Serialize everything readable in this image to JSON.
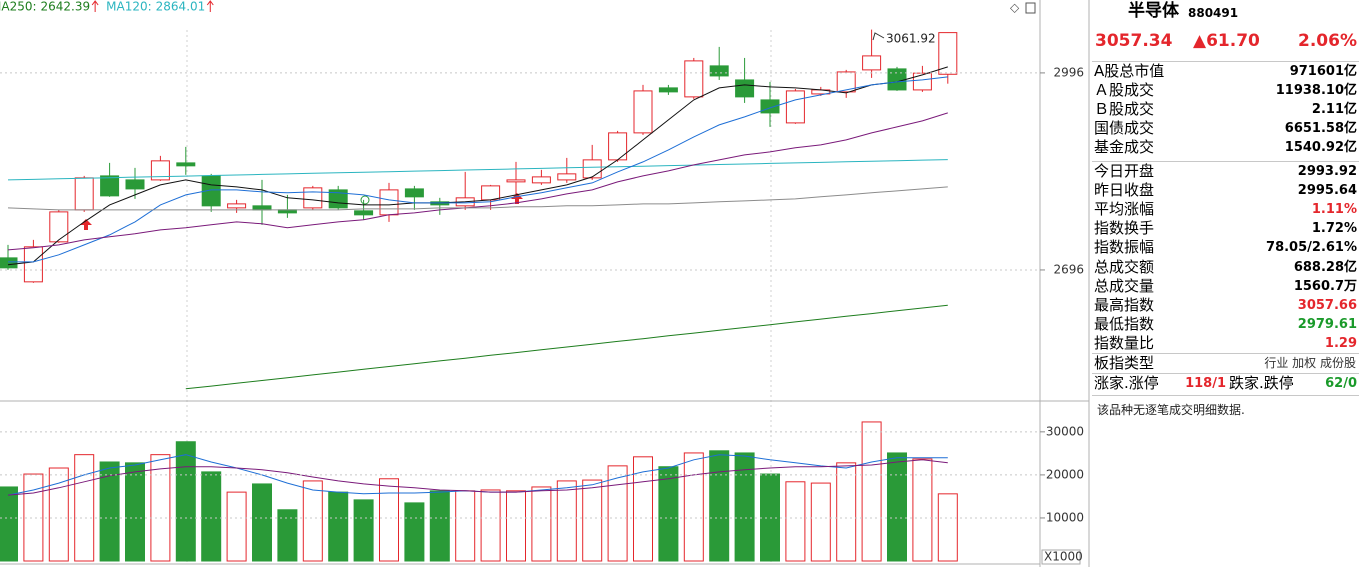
{
  "chart_data": [
    {
      "type": "candlestick",
      "open": [
        2714.4,
        2677.9,
        2738.8,
        2787.5,
        2839.2,
        2833.1,
        2833.1,
        2859.0,
        2839.2,
        2790.5,
        2793.6,
        2787.5,
        2790.5,
        2817.9,
        2786.0,
        2779.9,
        2819.4,
        2799.7,
        2793.6,
        2802.7,
        2830.1,
        2828.6,
        2833.1,
        2836.2,
        2863.6,
        2904.7,
        2973.2,
        2959.5,
        3006.7,
        2985.3,
        2954.9,
        2919.9,
        2964.0,
        2967.1,
        3000.6,
        3002.1,
        2970.1,
        2993.92
      ],
      "high": [
        2734.2,
        2741.8,
        2787.5,
        2839.2,
        2859.0,
        2851.4,
        2869.7,
        2883.4,
        2842.3,
        2802.7,
        2833.1,
        2810.3,
        2824.0,
        2824.0,
        2802.7,
        2828.6,
        2824.0,
        2805.8,
        2845.3,
        2825.5,
        2860.5,
        2848.4,
        2866.6,
        2886.4,
        2907.7,
        2977.7,
        2977.7,
        3018.8,
        3035.6,
        3018.8,
        2982.3,
        2971.6,
        2974.7,
        3000.6,
        3061.92,
        3005.1,
        3006.7,
        3057.66
      ],
      "low": [
        2696.2,
        2676.4,
        2737.3,
        2784.4,
        2807.3,
        2804.2,
        2831.6,
        2840.8,
        2784.4,
        2782.9,
        2764.7,
        2775.3,
        2787.5,
        2787.5,
        2772.3,
        2769.2,
        2787.5,
        2779.9,
        2787.5,
        2787.5,
        2810.3,
        2825.5,
        2828.6,
        2833.1,
        2860.5,
        2901.6,
        2962.5,
        2956.4,
        2985.3,
        2950.3,
        2913.8,
        2918.4,
        2961.0,
        2958.0,
        2988.4,
        2968.6,
        2967.1,
        2979.61
      ],
      "close": [
        2699.2,
        2731.2,
        2784.4,
        2836.2,
        2808.8,
        2819.4,
        2862.1,
        2854.5,
        2793.6,
        2796.6,
        2787.5,
        2782.9,
        2821.0,
        2790.5,
        2779.9,
        2817.9,
        2807.3,
        2795.1,
        2805.8,
        2824.0,
        2833.1,
        2837.7,
        2842.3,
        2863.6,
        2904.7,
        2968.6,
        2967.1,
        3014.3,
        2991.4,
        2959.5,
        2935.1,
        2968.6,
        2970.1,
        2997.5,
        3021.9,
        2970.1,
        2995.64,
        3057.34
      ],
      "up_color": "#e4262c",
      "down_color": "#2a9a38",
      "ylim": [
        2498,
        3107
      ],
      "yticks": [
        2696,
        2996
      ],
      "grid": true,
      "lines": [
        {
          "name": "MA250:",
          "color": "#1d7d1d",
          "values": [
            null,
            null,
            null,
            null,
            null,
            null,
            null,
            2515.0,
            2519.2,
            2523.5,
            2527.7,
            2532.0,
            2536.2,
            2540.5,
            2544.7,
            2549.0,
            2553.2,
            2557.5,
            2561.7,
            2566.0,
            2570.2,
            2574.4,
            2578.7,
            2582.9,
            2587.2,
            2591.4,
            2595.7,
            2599.9,
            2604.2,
            2608.4,
            2612.7,
            2616.9,
            2621.1,
            2625.4,
            2629.6,
            2633.9,
            2638.1,
            2642.39
          ]
        },
        {
          "name": "MA120:",
          "color": "#2bb5c0",
          "values": [
            2833.1,
            2833.9,
            2834.8,
            2835.6,
            2836.4,
            2837.3,
            2838.1,
            2838.9,
            2839.8,
            2840.6,
            2841.5,
            2842.3,
            2843.1,
            2844.0,
            2844.8,
            2845.6,
            2846.5,
            2847.3,
            2848.1,
            2849.0,
            2849.8,
            2850.6,
            2851.5,
            2852.3,
            2853.1,
            2854.0,
            2854.8,
            2855.6,
            2856.5,
            2857.3,
            2858.2,
            2859.0,
            2859.8,
            2860.7,
            2861.5,
            2862.3,
            2863.2,
            2864.01
          ]
        },
        {
          "color": "#111111",
          "values": [
            2703.8,
            2708.3,
            2741.8,
            2769.2,
            2795.1,
            2810.3,
            2825.5,
            2833.1,
            2825.5,
            2822.5,
            2817.9,
            2805.8,
            2802.7,
            2798.1,
            2795.1,
            2795.1,
            2798.1,
            2798.1,
            2799.7,
            2802.7,
            2810.3,
            2817.9,
            2825.5,
            2837.7,
            2863.6,
            2894.0,
            2924.5,
            2954.9,
            2973.2,
            2977.7,
            2974.7,
            2973.2,
            2970.1,
            2965.6,
            2977.7,
            2982.3,
            2992.9,
            3005.1
          ]
        },
        {
          "color": "#1e6fd6",
          "values": [
            2708.3,
            2708.3,
            2719.0,
            2734.2,
            2749.4,
            2769.2,
            2795.1,
            2810.3,
            2817.9,
            2817.9,
            2814.9,
            2813.4,
            2814.9,
            2813.4,
            2810.3,
            2802.7,
            2798.1,
            2798.1,
            2798.1,
            2799.7,
            2807.3,
            2813.4,
            2821.0,
            2828.6,
            2845.3,
            2860.5,
            2878.8,
            2898.6,
            2916.9,
            2929.0,
            2942.7,
            2954.9,
            2962.5,
            2970.1,
            2977.7,
            2982.3,
            2985.3,
            2989.9
          ]
        },
        {
          "color": "#7a1a7a",
          "values": [
            2726.6,
            2729.7,
            2734.2,
            2741.8,
            2746.4,
            2751.0,
            2757.0,
            2760.1,
            2764.7,
            2769.2,
            2766.2,
            2760.1,
            2764.7,
            2769.2,
            2772.3,
            2779.9,
            2782.9,
            2787.5,
            2790.5,
            2793.6,
            2798.1,
            2804.2,
            2811.8,
            2817.9,
            2830.1,
            2839.2,
            2846.8,
            2856.0,
            2863.6,
            2871.2,
            2875.8,
            2881.9,
            2886.4,
            2894.0,
            2904.7,
            2913.8,
            2922.9,
            2935.1
          ]
        },
        {
          "color": "#8c8c8c",
          "values": [
            2790.5,
            2789.0,
            2787.5,
            2787.5,
            2787.5,
            2787.5,
            2787.5,
            2787.5,
            2787.5,
            2787.5,
            2787.5,
            2787.5,
            2787.5,
            2787.5,
            2789.0,
            2789.0,
            2789.0,
            2790.5,
            2790.5,
            2790.5,
            2792.1,
            2792.1,
            2793.6,
            2793.6,
            2795.1,
            2796.6,
            2796.6,
            2798.1,
            2799.7,
            2801.2,
            2802.7,
            2804.2,
            2807.3,
            2810.3,
            2813.4,
            2816.4,
            2819.4,
            2822.5
          ]
        }
      ]
    },
    {
      "type": "bar",
      "values": [
        17200,
        20200,
        21600,
        24700,
        23000,
        22800,
        24700,
        27700,
        20700,
        16000,
        17900,
        11900,
        18600,
        16000,
        14200,
        19100,
        13500,
        16300,
        16300,
        16500,
        16300,
        17200,
        18600,
        18800,
        22100,
        24200,
        21900,
        25100,
        25600,
        25100,
        20200,
        18400,
        18100,
        22800,
        32300,
        25100,
        23700,
        15600
      ],
      "up_color": "#e4262c",
      "down_color": "#2a9a38",
      "ylim": [
        0,
        36700
      ],
      "yticks": [
        10000,
        20000,
        30000
      ],
      "y_label": "X1000",
      "grid": true,
      "lines": [
        {
          "color": "#1e6fd6",
          "values": [
            15300,
            16500,
            18100,
            20000,
            21600,
            22300,
            23500,
            24700,
            23000,
            21600,
            20000,
            18100,
            16500,
            16000,
            15600,
            15800,
            15800,
            16000,
            16300,
            16000,
            16000,
            16500,
            17000,
            17700,
            19300,
            20700,
            21600,
            23500,
            24700,
            24400,
            23500,
            22800,
            22100,
            21600,
            23000,
            24000,
            24000,
            24000
          ]
        },
        {
          "color": "#7a1a7a",
          "values": [
            15300,
            15800,
            17000,
            18400,
            19800,
            20700,
            21400,
            21900,
            21900,
            21600,
            21200,
            20500,
            19500,
            18600,
            17900,
            17400,
            17000,
            16500,
            16300,
            16000,
            16000,
            16300,
            16500,
            17000,
            17700,
            18400,
            19100,
            20000,
            20700,
            21200,
            21600,
            21900,
            21900,
            22100,
            22300,
            23000,
            23500,
            22800
          ]
        }
      ]
    }
  ],
  "panel": {
    "title": "半导体",
    "code": "880491",
    "price": "3057.34",
    "change": "▲61.70",
    "change_pct": "2.06%",
    "rows1": [
      {
        "label": "A股总市值",
        "value": "971601亿"
      },
      {
        "label": "Ａ股成交",
        "value": "11938.10亿"
      },
      {
        "label": "Ｂ股成交",
        "value": "2.11亿"
      },
      {
        "label": "国债成交",
        "value": "6651.58亿"
      },
      {
        "label": "基金成交",
        "value": "1540.92亿"
      }
    ],
    "rows2": [
      {
        "label": "今日开盘",
        "value": "2993.92"
      },
      {
        "label": "昨日收盘",
        "value": "2995.64"
      },
      {
        "label": "平均涨幅",
        "value": "1.11%",
        "color": "#e4262c"
      },
      {
        "label": "指数换手",
        "value": "1.72%"
      },
      {
        "label": "指数振幅",
        "value": "78.05/2.61%"
      },
      {
        "label": "总成交额",
        "value": "688.28亿"
      },
      {
        "label": "总成交量",
        "value": "1560.7万"
      },
      {
        "label": "最高指数",
        "value": "3057.66",
        "color": "#e4262c"
      },
      {
        "label": "最低指数",
        "value": "2979.61",
        "color": "#1a9a2a"
      },
      {
        "label": "指数量比",
        "value": "1.29",
        "color": "#e4262c"
      }
    ],
    "type_label": "板指类型",
    "type_value": "行业 加权 成份股",
    "up_label": "涨家.涨停",
    "up_value": "118/1",
    "down_label": "跌家.跌停",
    "down_value": "62/0",
    "note": "该品种无逐笔成交明细数据."
  }
}
